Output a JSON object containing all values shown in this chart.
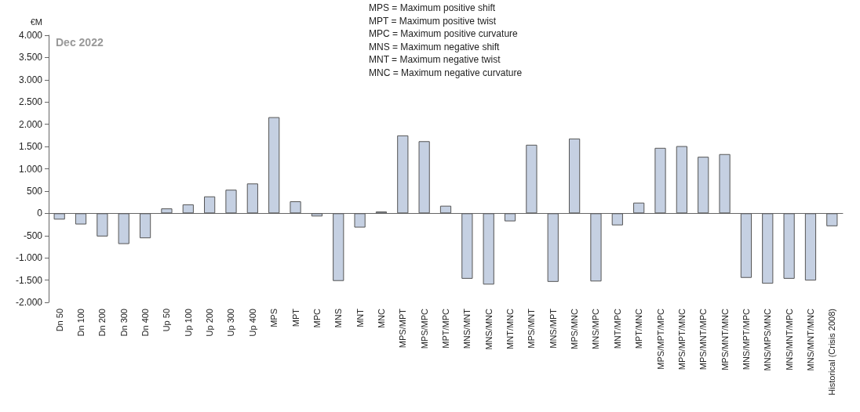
{
  "chart_data": {
    "type": "bar",
    "ylabel": "€M",
    "annotations": [
      "Dec 2022",
      "MPS = Maximum positive shift",
      "MPT = Maximum positive twist",
      "MPC = Maximum positive curvature",
      "MNS = Maximum negative shift",
      "MNT = Maximum negative twist",
      "MNC = Maximum negative curvature"
    ],
    "categories": [
      "Dn 50",
      "Dn 100",
      "Dn 200",
      "Dn 300",
      "Dn 400",
      "Up 50",
      "Up 100",
      "Up 200",
      "Up 300",
      "Up 400",
      "MPS",
      "MPT",
      "MPC",
      "MNS",
      "MNT",
      "MNC",
      "MPS/MPT",
      "MPS/MPC",
      "MPT/MPC",
      "MNS/MNT",
      "MNS/MNC",
      "MNT/MNC",
      "MPS/MNT",
      "MNS/MPT",
      "MPS/MNC",
      "MNS/MPC",
      "MNT/MPC",
      "MPT/MNC",
      "MPS/MPT/MPC",
      "MPS/MPT/MNC",
      "MPS/MNT/MPC",
      "MPS/MNT/MNC",
      "MNS/MPT/MPC",
      "MNS/MPS/MNC",
      "MNS/MNT/MPC",
      "MNS/MNT/MNC",
      "Historical (Crisis 2008)"
    ],
    "values": [
      -140,
      -250,
      -520,
      -690,
      -560,
      110,
      200,
      380,
      530,
      670,
      2160,
      270,
      -70,
      -1520,
      -320,
      40,
      1750,
      1620,
      170,
      -1470,
      -1600,
      -180,
      1540,
      -1540,
      1680,
      -1530,
      -270,
      240,
      1470,
      1510,
      1270,
      1330,
      -1450,
      -1580,
      -1470,
      -1510,
      -290
    ],
    "color": "#c5d0e2",
    "ylim": [
      -2000,
      4000
    ],
    "yticks": [
      {
        "value": -2000,
        "label": "-2.000"
      },
      {
        "value": -1500,
        "label": "-1.500"
      },
      {
        "value": -1000,
        "label": "-1.000"
      },
      {
        "value": -500,
        "label": "-500"
      },
      {
        "value": 0,
        "label": "0"
      },
      {
        "value": 500,
        "label": "500"
      },
      {
        "value": 1000,
        "label": "1.000"
      },
      {
        "value": 1500,
        "label": "1.500"
      },
      {
        "value": 2000,
        "label": "2.000"
      },
      {
        "value": 2500,
        "label": "2.500"
      },
      {
        "value": 3000,
        "label": "3.000"
      },
      {
        "value": 3500,
        "label": "3.500"
      },
      {
        "value": 4000,
        "label": "4.000"
      }
    ],
    "data_labels": false
  }
}
